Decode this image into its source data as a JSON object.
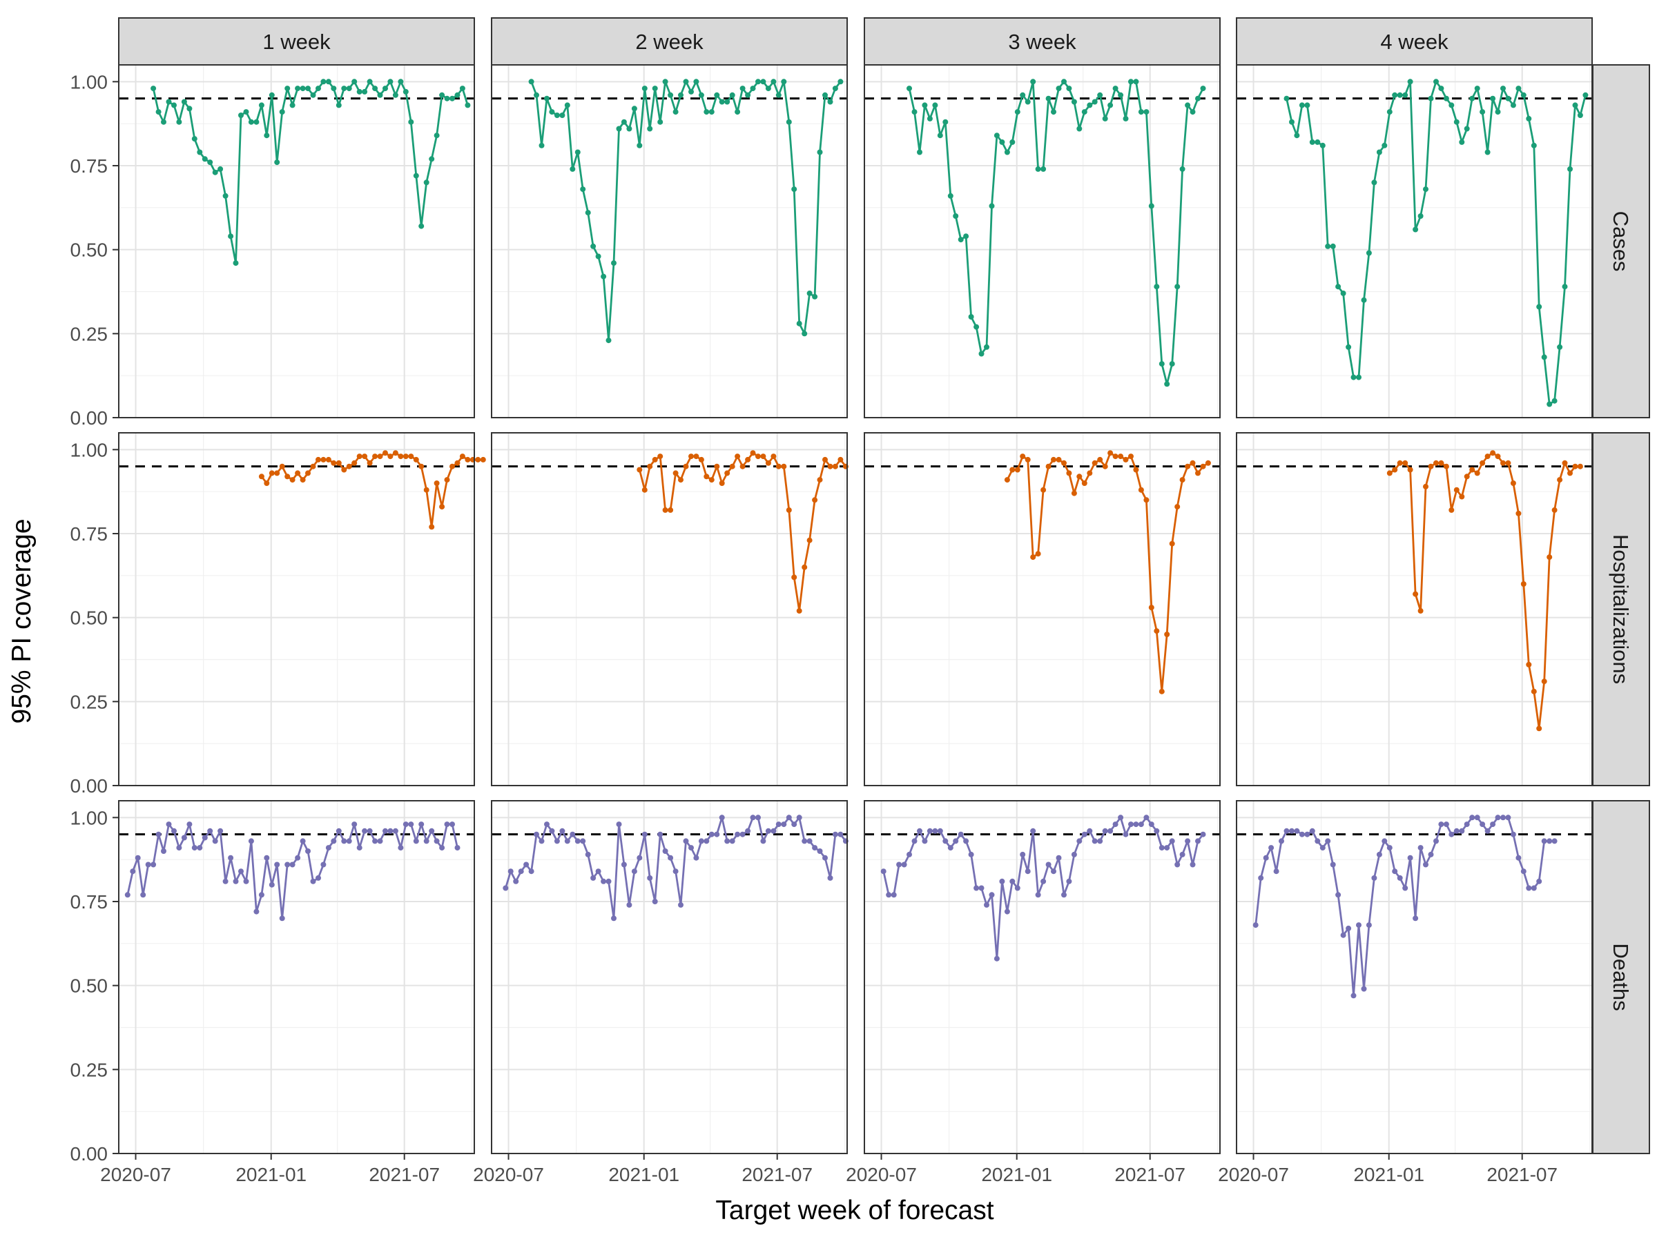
{
  "chart_data": {
    "type": "line",
    "ylabel": "95% PI coverage",
    "xlabel": "Target week of forecast",
    "ylim": [
      0,
      1.05
    ],
    "yticks": [
      0,
      0.25,
      0.5,
      0.75,
      1.0
    ],
    "ytick_labels": [
      "0.00",
      "0.25",
      "0.50",
      "0.75",
      "1.00"
    ],
    "xlim": [
      "2020-06-08",
      "2021-10-04"
    ],
    "xticks": [
      "2020-07-01",
      "2021-01-01",
      "2021-07-01"
    ],
    "xtick_labels": [
      "2020-07",
      "2021-01",
      "2021-07"
    ],
    "reference_line": 0.95,
    "grid": true,
    "legend": "none",
    "columns": [
      "1 week",
      "2 week",
      "3 week",
      "4 week"
    ],
    "rows": [
      "Cases",
      "Hospitalizations",
      "Deaths"
    ],
    "row_colors": {
      "Cases": "#1b9e77",
      "Hospitalizations": "#d95f02",
      "Deaths": "#7570b3"
    },
    "panels": [
      {
        "row": "Cases",
        "col": "1 week",
        "start": "2020-07-25",
        "values": [
          0.98,
          0.91,
          0.88,
          0.94,
          0.93,
          0.88,
          0.94,
          0.92,
          0.83,
          0.79,
          0.77,
          0.76,
          0.73,
          0.74,
          0.66,
          0.54,
          0.46,
          0.9,
          0.91,
          0.88,
          0.88,
          0.93,
          0.84,
          0.96,
          0.76,
          0.91,
          0.98,
          0.93,
          0.98,
          0.98,
          0.98,
          0.96,
          0.98,
          1.0,
          1.0,
          0.98,
          0.93,
          0.98,
          0.98,
          1.0,
          0.97,
          0.97,
          1.0,
          0.98,
          0.96,
          0.98,
          1.0,
          0.96,
          1.0,
          0.97,
          0.88,
          0.72,
          0.57,
          0.7,
          0.77,
          0.84,
          0.96,
          0.95,
          0.95,
          0.96,
          0.98,
          0.93
        ]
      },
      {
        "row": "Cases",
        "col": "2 week",
        "start": "2020-08-01",
        "values": [
          1.0,
          0.96,
          0.81,
          0.95,
          0.91,
          0.9,
          0.9,
          0.93,
          0.74,
          0.79,
          0.68,
          0.61,
          0.51,
          0.48,
          0.42,
          0.23,
          0.46,
          0.86,
          0.88,
          0.86,
          0.92,
          0.81,
          0.98,
          0.86,
          0.98,
          0.88,
          1.0,
          0.96,
          0.91,
          0.96,
          1.0,
          0.97,
          1.0,
          0.96,
          0.91,
          0.91,
          0.96,
          0.94,
          0.94,
          0.96,
          0.91,
          0.98,
          0.96,
          0.98,
          1.0,
          1.0,
          0.98,
          1.0,
          0.96,
          1.0,
          0.88,
          0.68,
          0.28,
          0.25,
          0.37,
          0.36,
          0.79,
          0.96,
          0.94,
          0.98,
          1.0
        ]
      },
      {
        "row": "Cases",
        "col": "3 week",
        "start": "2020-08-08",
        "values": [
          0.98,
          0.91,
          0.79,
          0.93,
          0.89,
          0.93,
          0.84,
          0.88,
          0.66,
          0.6,
          0.53,
          0.54,
          0.3,
          0.27,
          0.19,
          0.21,
          0.63,
          0.84,
          0.82,
          0.79,
          0.82,
          0.91,
          0.96,
          0.94,
          1.0,
          0.74,
          0.74,
          0.95,
          0.91,
          0.98,
          1.0,
          0.98,
          0.94,
          0.86,
          0.91,
          0.93,
          0.94,
          0.96,
          0.89,
          0.93,
          0.98,
          0.96,
          0.89,
          1.0,
          1.0,
          0.91,
          0.91,
          0.63,
          0.39,
          0.16,
          0.1,
          0.16,
          0.39,
          0.74,
          0.93,
          0.91,
          0.95,
          0.98
        ]
      },
      {
        "row": "Cases",
        "col": "4 week",
        "start": "2020-08-15",
        "values": [
          0.95,
          0.88,
          0.84,
          0.93,
          0.93,
          0.82,
          0.82,
          0.81,
          0.51,
          0.51,
          0.39,
          0.37,
          0.21,
          0.12,
          0.12,
          0.35,
          0.49,
          0.7,
          0.79,
          0.81,
          0.91,
          0.96,
          0.96,
          0.96,
          1.0,
          0.56,
          0.6,
          0.68,
          0.95,
          1.0,
          0.98,
          0.95,
          0.93,
          0.88,
          0.82,
          0.86,
          0.95,
          0.98,
          0.91,
          0.79,
          0.95,
          0.91,
          0.98,
          0.95,
          0.93,
          0.98,
          0.96,
          0.89,
          0.81,
          0.33,
          0.18,
          0.04,
          0.05,
          0.21,
          0.39,
          0.74,
          0.93,
          0.9,
          0.96
        ]
      },
      {
        "row": "Hospitalizations",
        "col": "1 week",
        "start": "2020-12-19",
        "values": [
          0.92,
          0.9,
          0.93,
          0.93,
          0.95,
          0.92,
          0.91,
          0.93,
          0.91,
          0.93,
          0.95,
          0.97,
          0.97,
          0.97,
          0.96,
          0.96,
          0.94,
          0.95,
          0.96,
          0.98,
          0.98,
          0.96,
          0.98,
          0.98,
          0.99,
          0.98,
          0.99,
          0.98,
          0.98,
          0.98,
          0.97,
          0.95,
          0.88,
          0.77,
          0.9,
          0.83,
          0.91,
          0.95,
          0.96,
          0.98,
          0.97,
          0.97,
          0.97,
          0.97
        ]
      },
      {
        "row": "Hospitalizations",
        "col": "2 week",
        "start": "2020-12-26",
        "values": [
          0.94,
          0.88,
          0.95,
          0.97,
          0.98,
          0.82,
          0.82,
          0.93,
          0.91,
          0.95,
          0.98,
          0.98,
          0.97,
          0.92,
          0.91,
          0.95,
          0.9,
          0.93,
          0.95,
          0.98,
          0.95,
          0.97,
          0.99,
          0.98,
          0.98,
          0.96,
          0.98,
          0.95,
          0.95,
          0.82,
          0.62,
          0.52,
          0.65,
          0.73,
          0.85,
          0.91,
          0.97,
          0.95,
          0.95,
          0.97,
          0.95
        ]
      },
      {
        "row": "Hospitalizations",
        "col": "3 week",
        "start": "2020-12-19",
        "values": [
          0.91,
          0.94,
          0.94,
          0.98,
          0.97,
          0.68,
          0.69,
          0.88,
          0.95,
          0.97,
          0.97,
          0.96,
          0.93,
          0.87,
          0.92,
          0.9,
          0.93,
          0.96,
          0.97,
          0.95,
          0.99,
          0.98,
          0.98,
          0.97,
          0.98,
          0.94,
          0.88,
          0.85,
          0.53,
          0.46,
          0.28,
          0.45,
          0.72,
          0.83,
          0.91,
          0.95,
          0.96,
          0.93,
          0.95,
          0.96
        ]
      },
      {
        "row": "Hospitalizations",
        "col": "4 week",
        "start": "2021-01-02",
        "values": [
          0.93,
          0.94,
          0.96,
          0.96,
          0.94,
          0.57,
          0.52,
          0.89,
          0.95,
          0.96,
          0.96,
          0.95,
          0.82,
          0.88,
          0.86,
          0.92,
          0.94,
          0.93,
          0.96,
          0.98,
          0.99,
          0.98,
          0.96,
          0.96,
          0.9,
          0.81,
          0.6,
          0.36,
          0.28,
          0.17,
          0.31,
          0.68,
          0.82,
          0.91,
          0.96,
          0.93,
          0.95,
          0.95
        ]
      },
      {
        "row": "Deaths",
        "col": "1 week",
        "start": "2020-06-20",
        "values": [
          0.77,
          0.84,
          0.88,
          0.77,
          0.86,
          0.86,
          0.95,
          0.9,
          0.98,
          0.96,
          0.91,
          0.94,
          0.98,
          0.91,
          0.91,
          0.94,
          0.96,
          0.93,
          0.96,
          0.81,
          0.88,
          0.81,
          0.84,
          0.81,
          0.93,
          0.72,
          0.77,
          0.88,
          0.8,
          0.86,
          0.7,
          0.86,
          0.86,
          0.88,
          0.93,
          0.9,
          0.81,
          0.82,
          0.86,
          0.91,
          0.93,
          0.96,
          0.93,
          0.93,
          0.98,
          0.91,
          0.96,
          0.96,
          0.93,
          0.93,
          0.96,
          0.96,
          0.96,
          0.91,
          0.98,
          0.98,
          0.93,
          0.98,
          0.93,
          0.96,
          0.93,
          0.91,
          0.98,
          0.98,
          0.91
        ]
      },
      {
        "row": "Deaths",
        "col": "2 week",
        "start": "2020-06-27",
        "values": [
          0.79,
          0.84,
          0.81,
          0.84,
          0.86,
          0.84,
          0.95,
          0.93,
          0.98,
          0.96,
          0.93,
          0.96,
          0.93,
          0.95,
          0.93,
          0.93,
          0.89,
          0.82,
          0.84,
          0.81,
          0.81,
          0.7,
          0.98,
          0.86,
          0.74,
          0.84,
          0.88,
          0.95,
          0.82,
          0.75,
          0.95,
          0.9,
          0.88,
          0.84,
          0.74,
          0.93,
          0.91,
          0.88,
          0.93,
          0.93,
          0.95,
          0.95,
          1.0,
          0.93,
          0.93,
          0.95,
          0.95,
          0.96,
          1.0,
          1.0,
          0.93,
          0.96,
          0.96,
          0.98,
          0.98,
          1.0,
          0.98,
          1.0,
          0.93,
          0.93,
          0.91,
          0.9,
          0.88,
          0.82,
          0.95,
          0.95,
          0.93
        ]
      },
      {
        "row": "Deaths",
        "col": "3 week",
        "start": "2020-07-04",
        "values": [
          0.84,
          0.77,
          0.77,
          0.86,
          0.86,
          0.89,
          0.93,
          0.96,
          0.93,
          0.96,
          0.96,
          0.96,
          0.93,
          0.91,
          0.93,
          0.95,
          0.93,
          0.89,
          0.79,
          0.79,
          0.74,
          0.77,
          0.58,
          0.81,
          0.72,
          0.81,
          0.79,
          0.89,
          0.84,
          0.96,
          0.77,
          0.81,
          0.86,
          0.84,
          0.88,
          0.77,
          0.81,
          0.89,
          0.93,
          0.95,
          0.96,
          0.93,
          0.93,
          0.96,
          0.96,
          0.98,
          1.0,
          0.95,
          0.98,
          0.98,
          0.98,
          1.0,
          0.98,
          0.96,
          0.91,
          0.91,
          0.93,
          0.86,
          0.89,
          0.93,
          0.86,
          0.93,
          0.95
        ]
      },
      {
        "row": "Deaths",
        "col": "4 week",
        "start": "2020-07-04",
        "values": [
          0.68,
          0.82,
          0.88,
          0.91,
          0.84,
          0.93,
          0.96,
          0.96,
          0.96,
          0.95,
          0.95,
          0.96,
          0.93,
          0.91,
          0.93,
          0.86,
          0.77,
          0.65,
          0.67,
          0.47,
          0.68,
          0.49,
          0.68,
          0.82,
          0.89,
          0.93,
          0.91,
          0.84,
          0.82,
          0.79,
          0.88,
          0.7,
          0.91,
          0.86,
          0.89,
          0.93,
          0.98,
          0.98,
          0.95,
          0.96,
          0.96,
          0.98,
          1.0,
          1.0,
          0.98,
          0.96,
          0.98,
          1.0,
          1.0,
          1.0,
          0.95,
          0.88,
          0.84,
          0.79,
          0.79,
          0.81,
          0.93,
          0.93,
          0.93
        ]
      }
    ]
  }
}
